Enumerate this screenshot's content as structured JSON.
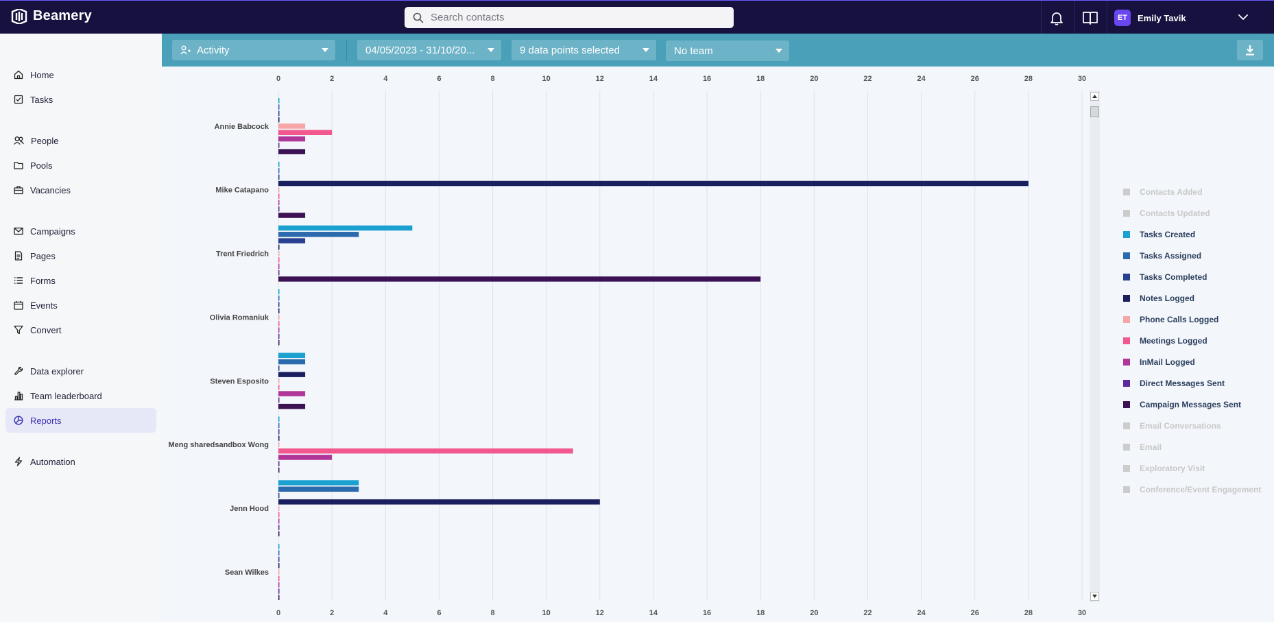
{
  "app": {
    "name": "Beamery"
  },
  "search": {
    "placeholder": "Search contacts"
  },
  "user": {
    "initials": "ET",
    "name": "Emily Tavik"
  },
  "sidebar": {
    "items": [
      {
        "label": "Home",
        "icon": "home-icon"
      },
      {
        "label": "Tasks",
        "icon": "tasks-icon"
      },
      {
        "label": "People",
        "icon": "people-icon"
      },
      {
        "label": "Pools",
        "icon": "folder-icon"
      },
      {
        "label": "Vacancies",
        "icon": "briefcase-icon"
      },
      {
        "label": "Campaigns",
        "icon": "mail-icon"
      },
      {
        "label": "Pages",
        "icon": "page-icon"
      },
      {
        "label": "Forms",
        "icon": "list-icon"
      },
      {
        "label": "Events",
        "icon": "calendar-icon"
      },
      {
        "label": "Convert",
        "icon": "filter-icon"
      },
      {
        "label": "Data explorer",
        "icon": "wrench-icon"
      },
      {
        "label": "Team leaderboard",
        "icon": "bar-chart-icon"
      },
      {
        "label": "Reports",
        "icon": "pie-chart-icon",
        "active": true
      },
      {
        "label": "Automation",
        "icon": "bolt-icon"
      }
    ]
  },
  "filters": {
    "report_type": "Activity",
    "date_range": "04/05/2023 - 31/10/20...",
    "data_points": "9 data points selected",
    "team": "No team"
  },
  "colors": {
    "topbar": "#16113f",
    "filterbar": "#4aa0b8",
    "active_nav": "#e6e8f8"
  },
  "chart_data": {
    "type": "bar",
    "orientation": "horizontal",
    "xlim": [
      0,
      30
    ],
    "xticks": [
      0,
      2,
      4,
      6,
      8,
      10,
      12,
      14,
      16,
      18,
      20,
      22,
      24,
      26,
      28,
      30
    ],
    "grid": true,
    "legend_position": "right",
    "categories": [
      "Annie Babcock",
      "Mike Catapano",
      "Trent Friedrich",
      "Olivia Romaniuk",
      "Steven Esposito",
      "Meng sharedsandbox Wong",
      "Jenn Hood",
      "Sean Wilkes"
    ],
    "series": [
      {
        "name": "Contacts Added",
        "color": "#cccccc",
        "enabled": false,
        "values": [
          0,
          0,
          0,
          0,
          0,
          0,
          0,
          0
        ]
      },
      {
        "name": "Contacts Updated",
        "color": "#cccccc",
        "enabled": false,
        "values": [
          0,
          0,
          0,
          0,
          0,
          0,
          0,
          0
        ]
      },
      {
        "name": "Tasks Created",
        "color": "#1ba1cf",
        "enabled": true,
        "values": [
          0,
          0,
          5,
          0,
          1,
          0,
          3,
          0
        ]
      },
      {
        "name": "Tasks Assigned",
        "color": "#2a6aad",
        "enabled": true,
        "values": [
          0,
          0,
          3,
          0,
          1,
          0,
          3,
          0
        ]
      },
      {
        "name": "Tasks Completed",
        "color": "#27408f",
        "enabled": true,
        "values": [
          0,
          0,
          1,
          0,
          0,
          0,
          0,
          0
        ]
      },
      {
        "name": "Notes Logged",
        "color": "#1a1f5f",
        "enabled": true,
        "values": [
          0,
          28,
          0,
          0,
          1,
          0,
          12,
          0
        ]
      },
      {
        "name": "Phone Calls Logged",
        "color": "#f6a6a6",
        "enabled": true,
        "values": [
          1,
          0,
          0,
          0,
          0,
          0,
          0,
          0
        ]
      },
      {
        "name": "Meetings Logged",
        "color": "#f2578e",
        "enabled": true,
        "values": [
          2,
          0,
          0,
          0,
          0,
          11,
          0,
          0
        ]
      },
      {
        "name": "InMail Logged",
        "color": "#b0369a",
        "enabled": true,
        "values": [
          1,
          0,
          0,
          0,
          1,
          2,
          0,
          0
        ]
      },
      {
        "name": "Direct Messages Sent",
        "color": "#5b2a9c",
        "enabled": true,
        "values": [
          0,
          0,
          0,
          0,
          0,
          0,
          0,
          0
        ]
      },
      {
        "name": "Campaign Messages Sent",
        "color": "#3d1255",
        "enabled": true,
        "values": [
          1,
          1,
          18,
          0,
          1,
          0,
          0,
          0
        ]
      },
      {
        "name": "Email Conversations",
        "color": "#cccccc",
        "enabled": false,
        "values": [
          0,
          0,
          0,
          0,
          0,
          0,
          0,
          0
        ]
      },
      {
        "name": "Email",
        "color": "#cccccc",
        "enabled": false,
        "values": [
          0,
          0,
          0,
          0,
          0,
          0,
          0,
          0
        ]
      },
      {
        "name": "Exploratory Visit",
        "color": "#cccccc",
        "enabled": false,
        "values": [
          0,
          0,
          0,
          0,
          0,
          0,
          0,
          0
        ]
      },
      {
        "name": "Conference/Event Engagement",
        "color": "#cccccc",
        "enabled": false,
        "values": [
          0,
          0,
          0,
          0,
          0,
          0,
          0,
          0
        ]
      }
    ]
  }
}
